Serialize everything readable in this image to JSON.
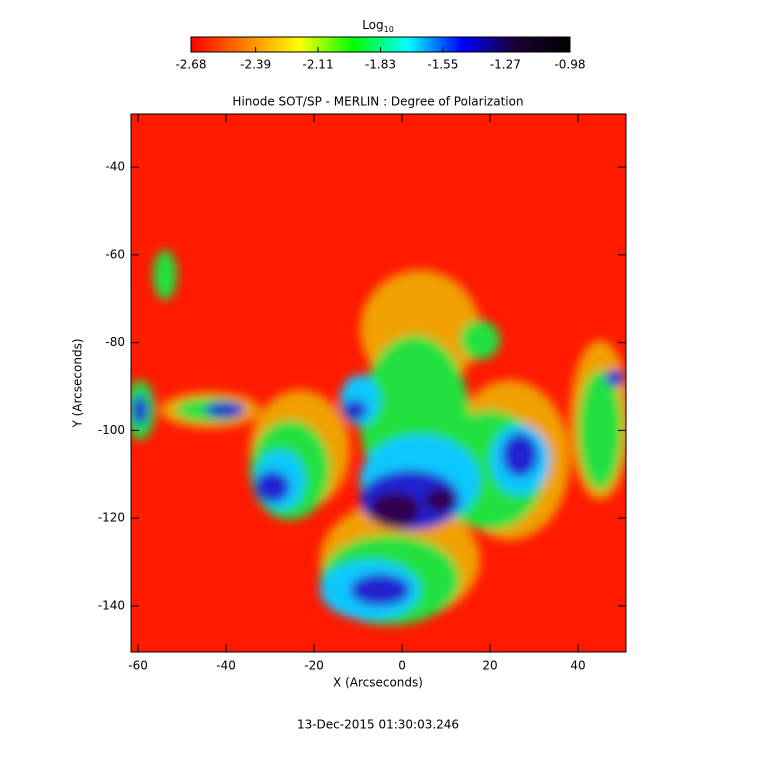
{
  "chart_data": {
    "type": "image",
    "title": "Hinode SOT/SP - MERLIN : Degree of Polarization",
    "x_label": "X (Arcseconds)",
    "y_label": "Y (Arcseconds)",
    "footer": "13-Dec-2015 01:30:03.246",
    "xlim": [
      -61.6,
      50.9
    ],
    "xticks": [
      -60,
      -40,
      -20,
      0,
      20,
      40
    ],
    "ylim": [
      -150.5,
      -27.9
    ],
    "yticks": [
      -140,
      -120,
      -100,
      -80,
      -60,
      -40
    ],
    "colorbar": {
      "label": "Log",
      "label_subscript": "10",
      "clim": [
        -2.68,
        -0.98
      ],
      "ticks": [
        -2.68,
        -2.39,
        -2.11,
        -1.83,
        -1.55,
        -1.27,
        -0.98
      ],
      "colors": [
        "#ff0000",
        "#ff8000",
        "#ffff00",
        "#00ff00",
        "#00ffff",
        "#0000ff",
        "#1a0033",
        "#000000"
      ]
    }
  }
}
